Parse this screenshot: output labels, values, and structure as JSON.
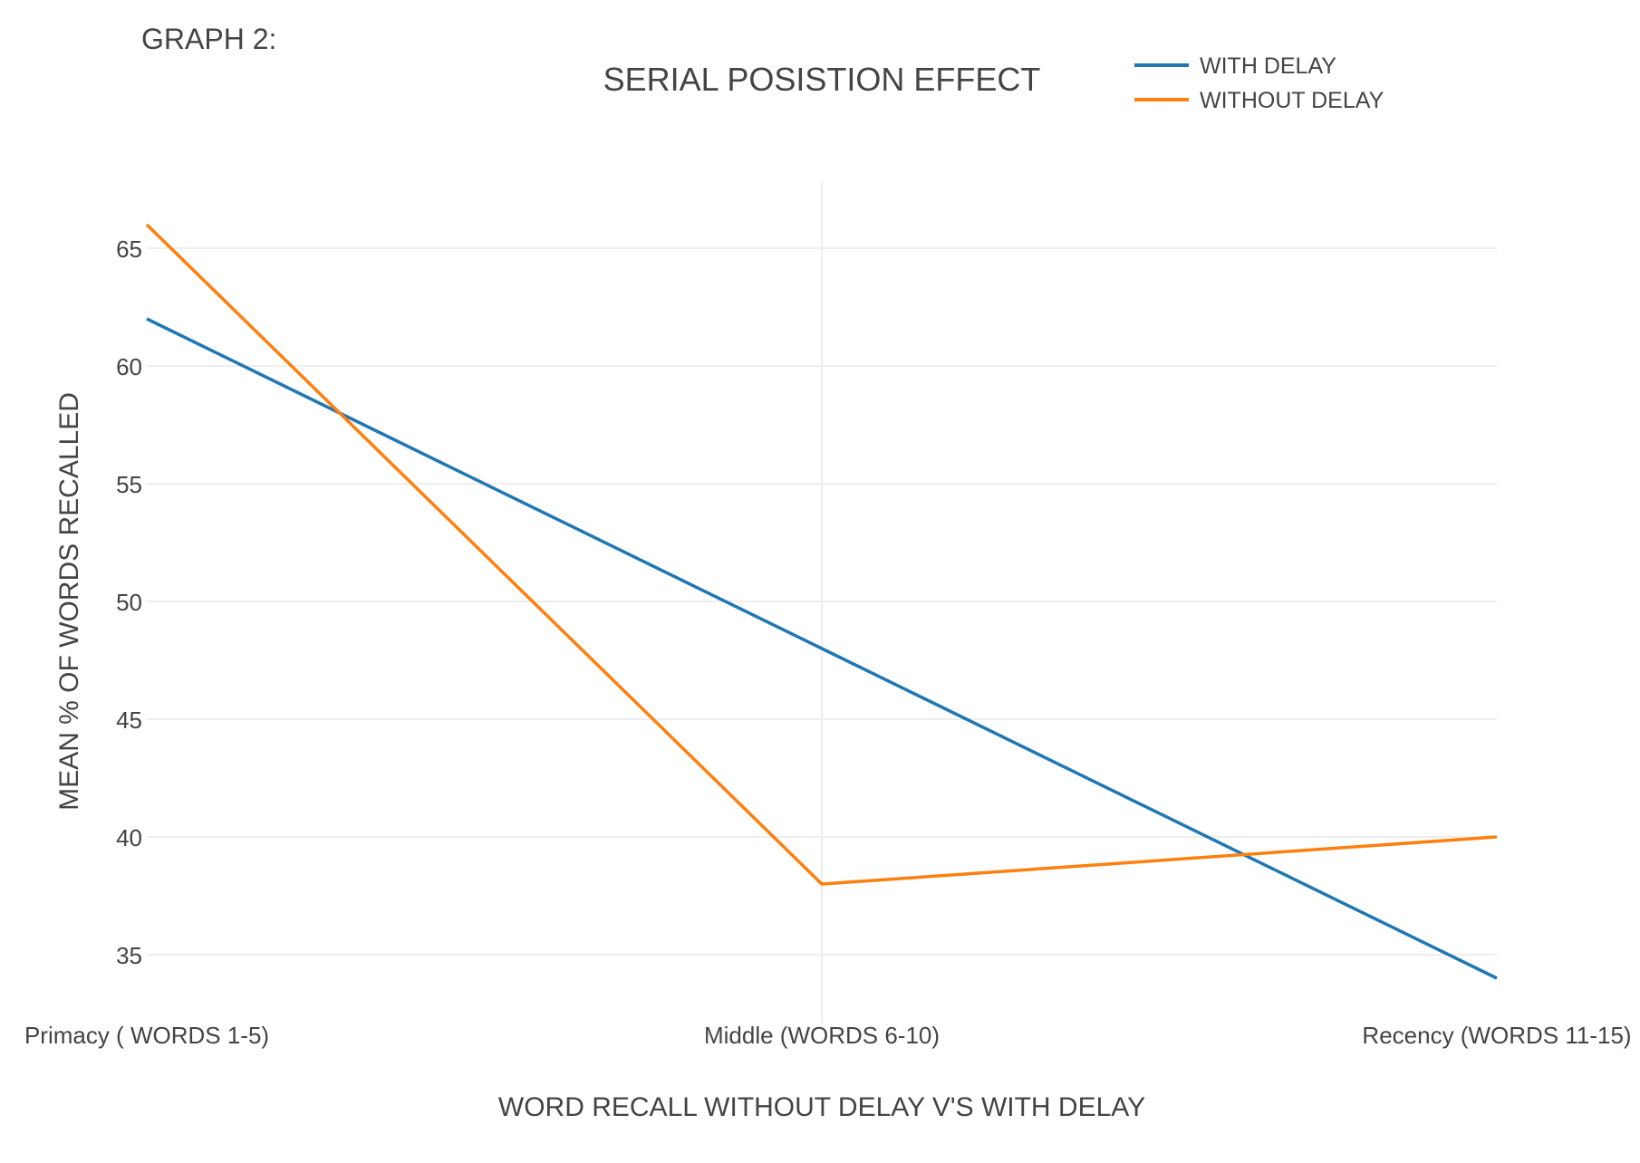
{
  "chart_data": {
    "type": "line",
    "heading": "GRAPH 2:",
    "title": "SERIAL POSISTION EFFECT",
    "xlabel": "WORD RECALL WITHOUT DELAY V'S WITH DELAY",
    "ylabel": "MEAN % OF WORDS RECALLED",
    "categories": [
      "Primacy ( WORDS 1-5)",
      "Middle (WORDS 6-10)",
      "Recency (WORDS 11-15)"
    ],
    "yticks": [
      35,
      40,
      45,
      50,
      55,
      60,
      65
    ],
    "ylim": [
      33,
      68
    ],
    "grid": true,
    "legend_position": "top-right",
    "series": [
      {
        "name": "WITH DELAY",
        "color": "#1f77b4",
        "values": [
          62,
          48,
          34
        ]
      },
      {
        "name": "WITHOUT DELAY",
        "color": "#ff7f0e",
        "values": [
          66,
          38,
          40
        ]
      }
    ]
  }
}
